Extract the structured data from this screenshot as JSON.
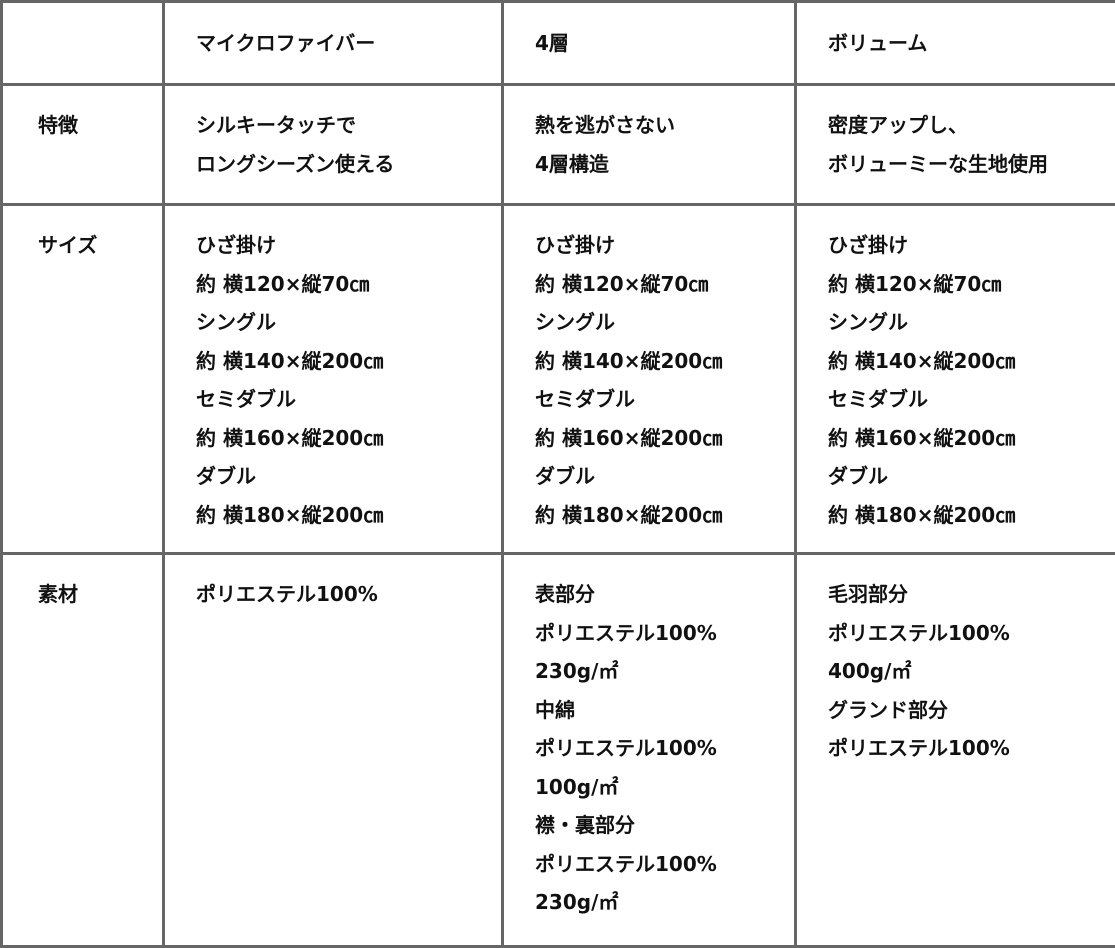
{
  "header": [
    "",
    "マイクロファイバー",
    "4層",
    "ボリューム"
  ],
  "rows": [
    {
      "label": "特徴",
      "cells": [
        [
          "シルキータッチで",
          "ロングシーズン使える"
        ],
        [
          "熱を逃がさない",
          "4層構造"
        ],
        [
          "密度アップし、",
          "ボリューミーな生地使用"
        ]
      ]
    },
    {
      "label": "サイズ",
      "cells": [
        [
          "ひざ掛け",
          "約 横120×縦70㎝",
          "シングル",
          "約 横140×縦200㎝",
          "セミダブル",
          "約 横160×縦200㎝",
          "ダブル",
          "約 横180×縦200㎝"
        ],
        [
          "ひざ掛け",
          "約 横120×縦70㎝",
          "シングル",
          "約 横140×縦200㎝",
          "セミダブル",
          "約 横160×縦200㎝",
          "ダブル",
          "約 横180×縦200㎝"
        ],
        [
          "ひざ掛け",
          "約 横120×縦70㎝",
          "シングル",
          "約 横140×縦200㎝",
          "セミダブル",
          "約 横160×縦200㎝",
          "ダブル",
          "約 横180×縦200㎝"
        ]
      ]
    },
    {
      "label": "素材",
      "cells": [
        [
          "ポリエステル100%"
        ],
        [
          "表部分",
          "ポリエステル100%",
          "230g/㎡",
          "中綿",
          "ポリエステル100%",
          "100g/㎡",
          "襟・裏部分",
          "ポリエステル100%",
          "230g/㎡"
        ],
        [
          "毛羽部分",
          "ポリエステル100%",
          "400g/㎡",
          "グランド部分",
          "ポリエステル100%"
        ]
      ]
    }
  ]
}
